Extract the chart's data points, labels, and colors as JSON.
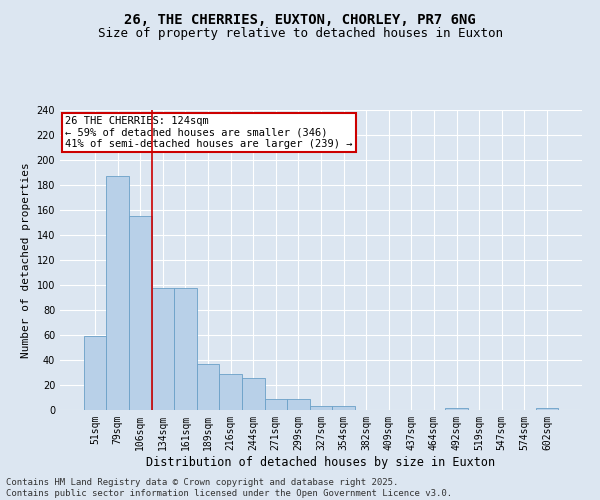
{
  "title": "26, THE CHERRIES, EUXTON, CHORLEY, PR7 6NG",
  "subtitle": "Size of property relative to detached houses in Euxton",
  "xlabel": "Distribution of detached houses by size in Euxton",
  "ylabel": "Number of detached properties",
  "categories": [
    "51sqm",
    "79sqm",
    "106sqm",
    "134sqm",
    "161sqm",
    "189sqm",
    "216sqm",
    "244sqm",
    "271sqm",
    "299sqm",
    "327sqm",
    "354sqm",
    "382sqm",
    "409sqm",
    "437sqm",
    "464sqm",
    "492sqm",
    "519sqm",
    "547sqm",
    "574sqm",
    "602sqm"
  ],
  "values": [
    59,
    187,
    155,
    98,
    98,
    37,
    29,
    26,
    9,
    9,
    3,
    3,
    0,
    0,
    0,
    0,
    2,
    0,
    0,
    0,
    2
  ],
  "bar_color": "#b8d0e8",
  "bar_edge_color": "#6aa0c8",
  "background_color": "#dce6f1",
  "plot_bg_color": "#dce6f1",
  "grid_color": "#ffffff",
  "annotation_text": "26 THE CHERRIES: 124sqm\n← 59% of detached houses are smaller (346)\n41% of semi-detached houses are larger (239) →",
  "annotation_box_color": "#ffffff",
  "annotation_box_edge_color": "#cc0000",
  "vline_x": 2.5,
  "vline_color": "#cc0000",
  "ylim": [
    0,
    240
  ],
  "yticks": [
    0,
    20,
    40,
    60,
    80,
    100,
    120,
    140,
    160,
    180,
    200,
    220,
    240
  ],
  "footer": "Contains HM Land Registry data © Crown copyright and database right 2025.\nContains public sector information licensed under the Open Government Licence v3.0.",
  "title_fontsize": 10,
  "subtitle_fontsize": 9,
  "annotation_fontsize": 7.5,
  "tick_fontsize": 7,
  "ylabel_fontsize": 8,
  "xlabel_fontsize": 8.5,
  "footer_fontsize": 6.5
}
